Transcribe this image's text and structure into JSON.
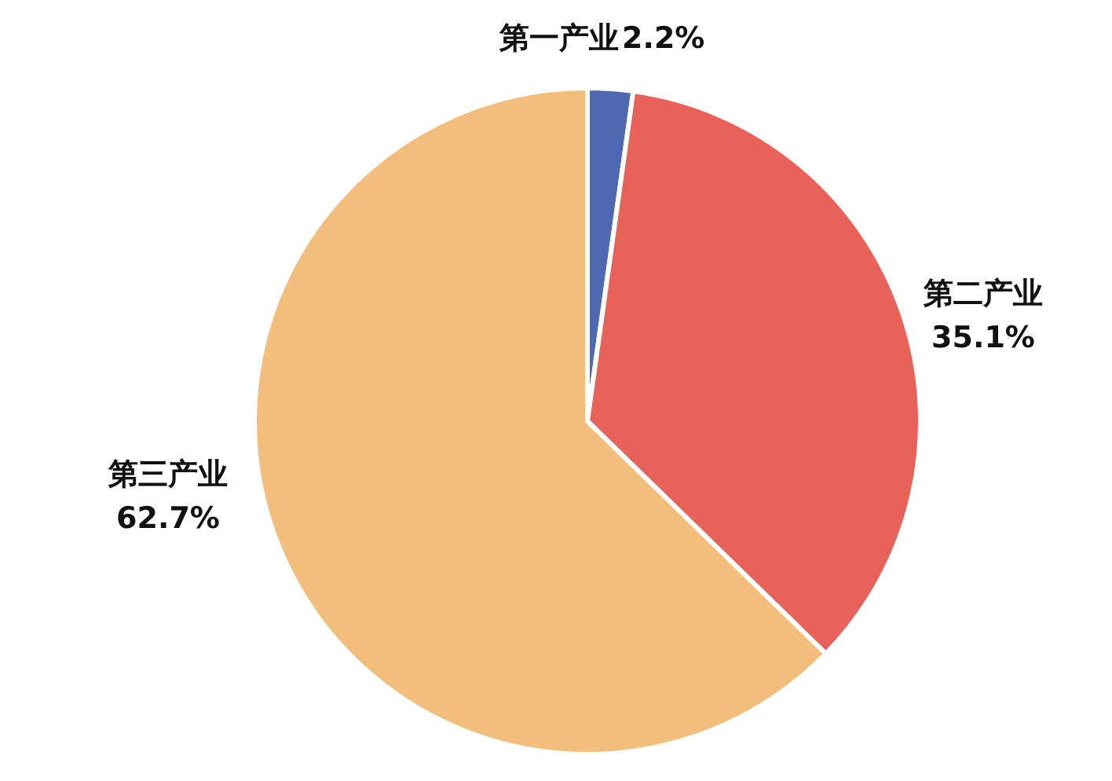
{
  "chart_data": {
    "type": "pie",
    "categories": [
      "第一产业",
      "第二产业",
      "第三产业"
    ],
    "values": [
      2.2,
      35.1,
      62.7
    ],
    "colors": [
      "#4f68b2",
      "#e9625a",
      "#f3bd7b"
    ],
    "value_labels": [
      "2.2%",
      "35.1%",
      "62.7%"
    ]
  }
}
